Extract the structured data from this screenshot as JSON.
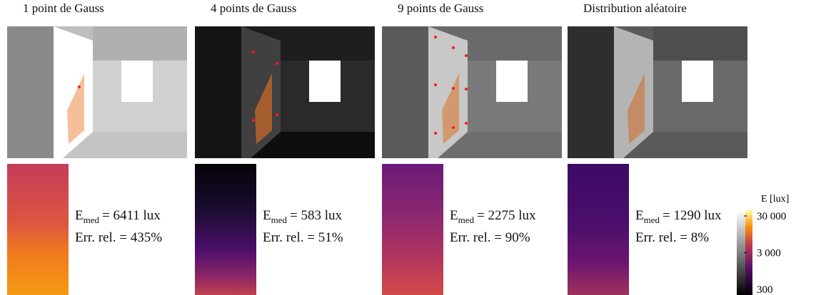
{
  "panels": [
    {
      "title": "1 point de Gauss",
      "e_symbol": "E",
      "e_sub": "med",
      "e_value": "= 6411 lux",
      "err_rel": "Err. rel. = 435%"
    },
    {
      "title": "4 points de Gauss",
      "e_symbol": "E",
      "e_sub": "med",
      "e_value": "= 583 lux",
      "err_rel": "Err. rel. = 51%"
    },
    {
      "title": "9 points de Gauss",
      "e_symbol": "E",
      "e_sub": "med",
      "e_value": "= 2275 lux",
      "err_rel": "Err. rel. = 90%"
    },
    {
      "title": "Distribution aléatoire",
      "e_symbol": "E",
      "e_sub": "med",
      "e_value": "= 1290 lux",
      "err_rel": "Err. rel. = 8%"
    }
  ],
  "colorbar": {
    "label": "E [lux]",
    "scale": "log",
    "lim": [
      210,
      43000
    ],
    "ticks": [
      {
        "value": 30000,
        "label": "30 000"
      },
      {
        "value": 3000,
        "label": "3 000"
      },
      {
        "value": 300,
        "label": "300"
      }
    ]
  }
}
